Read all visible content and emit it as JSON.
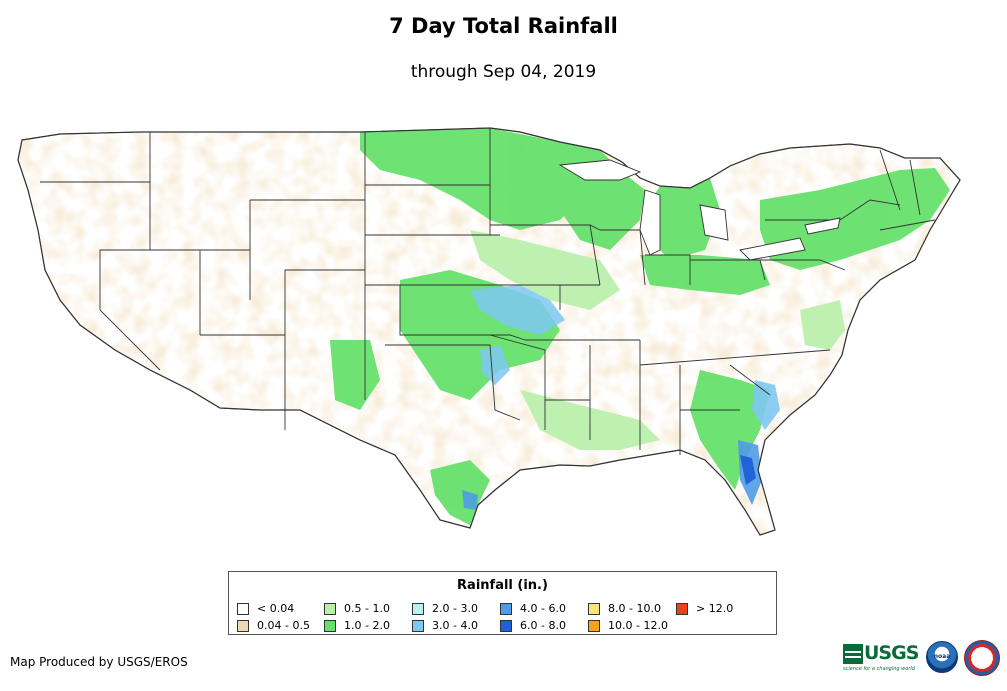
{
  "title": "7 Day Total Rainfall",
  "subtitle": "through Sep 04, 2019",
  "legend": {
    "title": "Rainfall (in.)",
    "items": [
      {
        "label": "< 0.04",
        "color": "#ffffff"
      },
      {
        "label": "0.04 - 0.5",
        "color": "#f0d9b5"
      },
      {
        "label": "0.5 - 1.0",
        "color": "#b7f0a8"
      },
      {
        "label": "1.0 - 2.0",
        "color": "#66e06b"
      },
      {
        "label": "2.0 - 3.0",
        "color": "#b6f2f0"
      },
      {
        "label": "3.0 - 4.0",
        "color": "#7ec8f2"
      },
      {
        "label": "4.0 - 6.0",
        "color": "#4f9ce6"
      },
      {
        "label": "6.0 - 8.0",
        "color": "#1f5fd9"
      },
      {
        "label": "8.0 - 10.0",
        "color": "#fbe27a"
      },
      {
        "label": "10.0 - 12.0",
        "color": "#f7a21b"
      },
      {
        "label": "> 12.0",
        "color": "#e8421a"
      }
    ]
  },
  "credit": "Map Produced by USGS/EROS",
  "logos": {
    "usgs": "USGS",
    "usgs_tagline": "science for a changing world",
    "noaa": "noaa",
    "nws": "national weather service"
  }
}
